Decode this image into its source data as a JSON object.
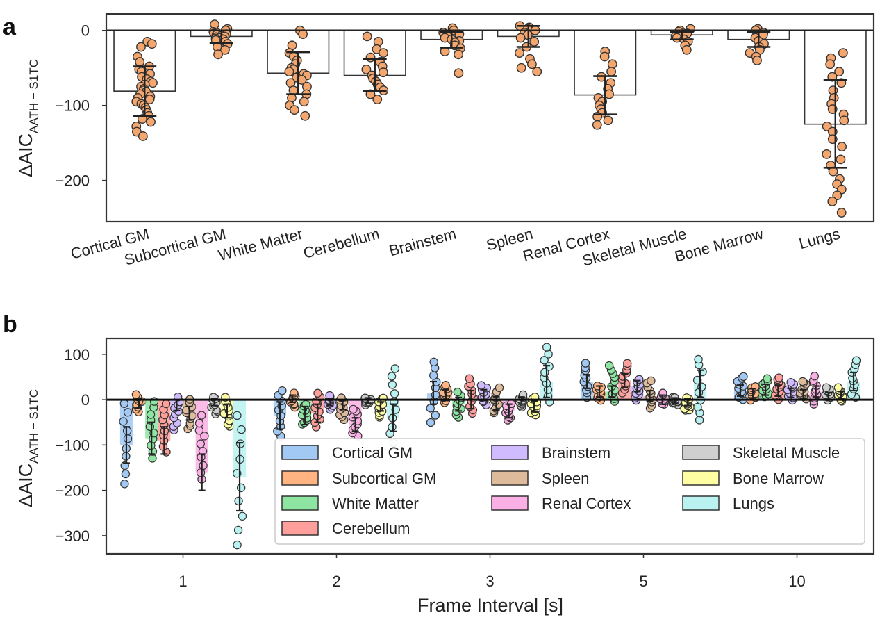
{
  "chart_data": [
    {
      "panel": "a",
      "type": "bar",
      "ylabel": "ΔAIC",
      "ylabel_sub": "AATH − S1TC",
      "xlabel": "",
      "ylim": [
        -255,
        22
      ],
      "yticks": [
        0,
        -100,
        -200
      ],
      "grid": false,
      "categories": [
        "Cortical GM",
        "Subcortical GM",
        "White Matter",
        "Cerebellum",
        "Brainstem",
        "Spleen",
        "Renal Cortex",
        "Skeletal Muscle",
        "Bone Marrow",
        "Lungs"
      ],
      "values": [
        -81,
        -8,
        -57,
        -60,
        -12,
        -8,
        -86,
        -6,
        -12,
        -125
      ],
      "error_low": [
        -114,
        -17,
        -85,
        -81,
        -23,
        -22,
        -112,
        -12,
        -22,
        -183
      ],
      "error_high": [
        -48,
        0,
        -29,
        -38,
        -2,
        6,
        -61,
        -2,
        -2,
        -66
      ],
      "points": [
        [
          -15,
          -18,
          -22,
          -35,
          -42,
          -48,
          -52,
          -55,
          -58,
          -62,
          -65,
          -68,
          -70,
          -72,
          -75,
          -78,
          -80,
          -82,
          -85,
          -88,
          -90,
          -92,
          -95,
          -98,
          -100,
          -103,
          -106,
          -110,
          -114,
          -118,
          -122,
          -128,
          -135,
          -141
        ],
        [
          8,
          2,
          0,
          -2,
          -3,
          -4,
          -5,
          -6,
          -7,
          -8,
          -9,
          -10,
          -11,
          -12,
          -13,
          -15,
          -18,
          -22,
          -26,
          -32
        ],
        [
          0,
          -5,
          -20,
          -30,
          -35,
          -40,
          -45,
          -50,
          -52,
          -55,
          -58,
          -60,
          -63,
          -66,
          -70,
          -75,
          -80,
          -85,
          -90,
          -95,
          -100,
          -106,
          -114
        ],
        [
          -8,
          -15,
          -25,
          -30,
          -36,
          -42,
          -48,
          -52,
          -56,
          -60,
          -64,
          -68,
          -72,
          -76,
          -80,
          -85,
          -92
        ],
        [
          3,
          0,
          -3,
          -5,
          -8,
          -10,
          -12,
          -14,
          -16,
          -20,
          -24,
          -28,
          -32,
          -57
        ],
        [
          6,
          4,
          2,
          0,
          -3,
          -6,
          -10,
          -15,
          -22,
          -30,
          -38,
          -45,
          -50,
          -55
        ],
        [
          -28,
          -35,
          -45,
          -55,
          -62,
          -70,
          -78,
          -85,
          -90,
          -95,
          -100,
          -105,
          -110,
          -115,
          -120,
          -126
        ],
        [
          2,
          0,
          -2,
          -4,
          -6,
          -8,
          -10,
          -12,
          -15,
          -20,
          -26
        ],
        [
          2,
          0,
          -3,
          -6,
          -10,
          -14,
          -18,
          -22,
          -26,
          -30,
          -35,
          -40
        ],
        [
          -30,
          -37,
          -45,
          -55,
          -62,
          -70,
          -80,
          -90,
          -98,
          -105,
          -112,
          -120,
          -128,
          -135,
          -145,
          -155,
          -165,
          -172,
          -180,
          -188,
          -198,
          -205,
          -212,
          -220,
          -228,
          -243
        ]
      ]
    },
    {
      "panel": "b",
      "type": "bar",
      "xlabel": "Frame Interval [s]",
      "ylabel": "ΔAIC",
      "ylabel_sub": "AATH − S1TC",
      "ylim": [
        -340,
        135
      ],
      "yticks": [
        100,
        0,
        -100,
        -200,
        -300
      ],
      "grid": false,
      "categories": [
        "1",
        "2",
        "3",
        "5",
        "10"
      ],
      "legend_location": "lower-right",
      "series": [
        {
          "name": "Cortical GM",
          "color": "#a1c9f4",
          "values": [
            -100,
            -35,
            15,
            40,
            20
          ],
          "err": [
            40,
            30,
            25,
            15,
            12
          ],
          "spread": [
            [
              -185,
              -10
            ],
            [
              -80,
              20
            ],
            [
              -50,
              85
            ],
            [
              5,
              80
            ],
            [
              0,
              52
            ]
          ]
        },
        {
          "name": "Subcortical GM",
          "color": "#ffb482",
          "values": [
            -8,
            2,
            10,
            18,
            14
          ],
          "err": [
            10,
            8,
            12,
            12,
            10
          ],
          "spread": [
            [
              -25,
              10
            ],
            [
              -15,
              15
            ],
            [
              -5,
              30
            ],
            [
              0,
              30
            ],
            [
              0,
              30
            ]
          ]
        },
        {
          "name": "White Matter",
          "color": "#8de5a1",
          "values": [
            -85,
            -35,
            -10,
            18,
            22
          ],
          "err": [
            35,
            20,
            15,
            12,
            12
          ],
          "spread": [
            [
              -130,
              -5
            ],
            [
              -55,
              -10
            ],
            [
              -40,
              15
            ],
            [
              -5,
              75
            ],
            [
              5,
              48
            ]
          ]
        },
        {
          "name": "Cerebellum",
          "color": "#ff9f9b",
          "values": [
            -90,
            -30,
            0,
            42,
            20
          ],
          "err": [
            30,
            20,
            20,
            15,
            12
          ],
          "spread": [
            [
              -115,
              -10
            ],
            [
              -60,
              15
            ],
            [
              -30,
              45
            ],
            [
              15,
              80
            ],
            [
              0,
              50
            ]
          ]
        },
        {
          "name": "Brainstem",
          "color": "#d0bbff",
          "values": [
            -12,
            -5,
            10,
            30,
            15
          ],
          "err": [
            12,
            8,
            12,
            12,
            10
          ],
          "spread": [
            [
              -65,
              5
            ],
            [
              -20,
              10
            ],
            [
              -10,
              30
            ],
            [
              0,
              45
            ],
            [
              0,
              40
            ]
          ]
        },
        {
          "name": "Spleen",
          "color": "#debb9b",
          "values": [
            -30,
            -12,
            -8,
            8,
            12
          ],
          "err": [
            15,
            10,
            15,
            12,
            10
          ],
          "spread": [
            [
              -65,
              0
            ],
            [
              -45,
              5
            ],
            [
              -30,
              25
            ],
            [
              -20,
              42
            ],
            [
              0,
              42
            ]
          ]
        },
        {
          "name": "Renal Cortex",
          "color": "#fab0e4",
          "values": [
            -160,
            -55,
            -25,
            0,
            18
          ],
          "err": [
            40,
            15,
            15,
            10,
            12
          ],
          "spread": [
            [
              -175,
              -35
            ],
            [
              -80,
              -20
            ],
            [
              -45,
              -10
            ],
            [
              -10,
              15
            ],
            [
              -10,
              50
            ]
          ]
        },
        {
          "name": "Skeletal Muscle",
          "color": "#cfcfcf",
          "values": [
            -5,
            -2,
            -2,
            -2,
            8
          ],
          "err": [
            8,
            6,
            8,
            6,
            8
          ],
          "spread": [
            [
              -30,
              5
            ],
            [
              -10,
              5
            ],
            [
              -15,
              10
            ],
            [
              -10,
              5
            ],
            [
              0,
              25
            ]
          ]
        },
        {
          "name": "Bone Marrow",
          "color": "#fffea3",
          "values": [
            -25,
            -15,
            -15,
            -5,
            10
          ],
          "err": [
            15,
            10,
            12,
            8,
            8
          ],
          "spread": [
            [
              -60,
              5
            ],
            [
              -40,
              5
            ],
            [
              -35,
              5
            ],
            [
              -25,
              5
            ],
            [
              -5,
              25
            ]
          ]
        },
        {
          "name": "Lungs",
          "color": "#b9f2f0",
          "values": [
            -170,
            -40,
            40,
            35,
            40
          ],
          "err": [
            75,
            30,
            35,
            30,
            20
          ],
          "spread": [
            [
              -320,
              -35
            ],
            [
              -95,
              70
            ],
            [
              -5,
              115
            ],
            [
              -45,
              90
            ],
            [
              5,
              85
            ]
          ]
        }
      ]
    }
  ]
}
